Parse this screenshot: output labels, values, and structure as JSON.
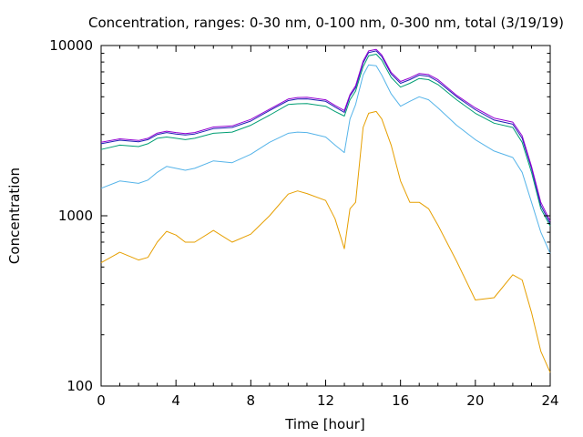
{
  "chart_data": {
    "type": "line",
    "title": "Concentration, ranges: 0-30 nm, 0-100 nm, 0-300 nm, total (3/19/19)",
    "xlabel": "Time [hour]",
    "ylabel": "Concentration",
    "xlim": [
      0,
      24
    ],
    "ylim": [
      100,
      10000
    ],
    "yscale": "log",
    "x_ticks": [
      0,
      4,
      8,
      12,
      16,
      20,
      24
    ],
    "x_tick_labels": [
      "0",
      "4",
      "8",
      "12",
      "16",
      "20",
      "24"
    ],
    "y_ticks": [
      100,
      1000,
      10000
    ],
    "y_tick_labels": [
      "100",
      "1000",
      "10000"
    ],
    "grid": false,
    "legend": "none",
    "x": [
      0,
      1,
      2,
      2.5,
      3,
      3.5,
      4,
      4.5,
      5,
      6,
      7,
      8,
      9,
      10,
      10.5,
      11,
      12,
      12.5,
      13,
      13.3,
      13.6,
      14,
      14.3,
      14.7,
      15,
      15.5,
      16,
      16.5,
      17,
      17.5,
      18,
      19,
      20,
      21,
      22,
      22.5,
      23,
      23.5,
      24
    ],
    "series": [
      {
        "color": "#e69f00",
        "values": [
          530,
          610,
          550,
          570,
          700,
          810,
          770,
          700,
          700,
          820,
          700,
          780,
          1000,
          1340,
          1400,
          1350,
          1230,
          960,
          640,
          1100,
          1200,
          3300,
          4000,
          4100,
          3700,
          2600,
          1600,
          1200,
          1200,
          1100,
          880,
          540,
          320,
          330,
          450,
          420,
          270,
          160,
          120
        ]
      },
      {
        "color": "#56b4e9",
        "values": [
          1450,
          1600,
          1550,
          1620,
          1800,
          1950,
          1900,
          1850,
          1900,
          2100,
          2050,
          2300,
          2700,
          3050,
          3100,
          3080,
          2900,
          2600,
          2350,
          3700,
          4500,
          6700,
          7700,
          7600,
          6700,
          5200,
          4400,
          4700,
          5000,
          4800,
          4300,
          3400,
          2800,
          2400,
          2200,
          1800,
          1200,
          800,
          600
        ]
      },
      {
        "color": "#009e73",
        "values": [
          2450,
          2600,
          2550,
          2650,
          2850,
          2900,
          2850,
          2800,
          2850,
          3050,
          3100,
          3400,
          3900,
          4500,
          4550,
          4560,
          4400,
          4100,
          3850,
          4800,
          5400,
          7500,
          8700,
          8900,
          8200,
          6500,
          5700,
          6000,
          6400,
          6300,
          5900,
          4800,
          4000,
          3500,
          3300,
          2700,
          1800,
          1100,
          870
        ]
      },
      {
        "color": "#1f1fb4",
        "values": [
          2650,
          2780,
          2720,
          2800,
          3000,
          3080,
          3020,
          2980,
          3020,
          3250,
          3300,
          3600,
          4150,
          4750,
          4850,
          4860,
          4700,
          4350,
          4050,
          5050,
          5650,
          7900,
          9100,
          9300,
          8600,
          6800,
          6000,
          6300,
          6700,
          6600,
          6150,
          5000,
          4200,
          3650,
          3450,
          2850,
          1900,
          1150,
          900
        ]
      },
      {
        "color": "#9400d3",
        "values": [
          2700,
          2830,
          2770,
          2850,
          3060,
          3140,
          3080,
          3040,
          3080,
          3320,
          3370,
          3680,
          4230,
          4850,
          4950,
          4960,
          4800,
          4450,
          4150,
          5150,
          5800,
          8100,
          9300,
          9500,
          8800,
          6950,
          6150,
          6450,
          6850,
          6750,
          6300,
          5100,
          4300,
          3750,
          3550,
          2950,
          1950,
          1200,
          930
        ]
      }
    ]
  }
}
